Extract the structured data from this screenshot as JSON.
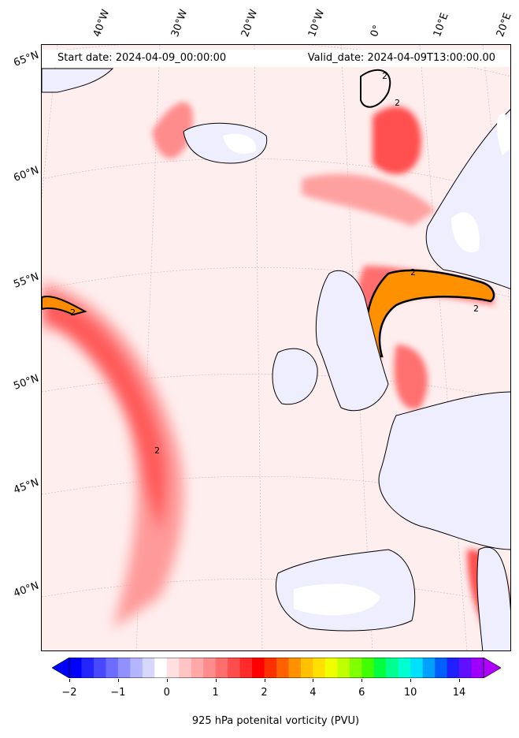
{
  "header": {
    "start_date": "Start date: 2024-04-09_00:00:00",
    "valid_date": "Valid_date: 2024-04-09T13:00:00.00"
  },
  "map": {
    "lon_labels": [
      "40°W",
      "30°W",
      "20°W",
      "10°W",
      "0°",
      "10°E",
      "20°E"
    ],
    "lat_labels": [
      "65°N",
      "60°N",
      "55°N",
      "50°N",
      "45°N",
      "40°N"
    ],
    "contour_labels": [
      "2",
      "2",
      "2",
      "2",
      "2",
      "2"
    ],
    "land_color": "#eeeeff",
    "coast_color": "#000000"
  },
  "colorbar": {
    "ticks": [
      "−2",
      "−1",
      "0",
      "1",
      "2",
      "4",
      "6",
      "10",
      "14"
    ],
    "label": "925 hPa potenital vorticity (PVU)",
    "colors": [
      "#0000ff",
      "#2424ff",
      "#4848ff",
      "#6c6cff",
      "#9090ff",
      "#b4b4ff",
      "#d8d8ff",
      "#ffffff",
      "#ffe0e0",
      "#ffc4c4",
      "#ffa8a8",
      "#ff8c8c",
      "#ff6e6e",
      "#ff4c4c",
      "#ff2a2a",
      "#ff0000",
      "#ff3000",
      "#ff6000",
      "#ff9000",
      "#ffc000",
      "#ffe000",
      "#f0ff00",
      "#c0ff00",
      "#80ff00",
      "#40ff00",
      "#00ff40",
      "#00ff90",
      "#00ffd0",
      "#00e0ff",
      "#00a0ff",
      "#0060ff",
      "#2020ff",
      "#6010ff",
      "#a000ff"
    ],
    "extend_low": "#0000ff",
    "extend_high": "#b000ff"
  }
}
